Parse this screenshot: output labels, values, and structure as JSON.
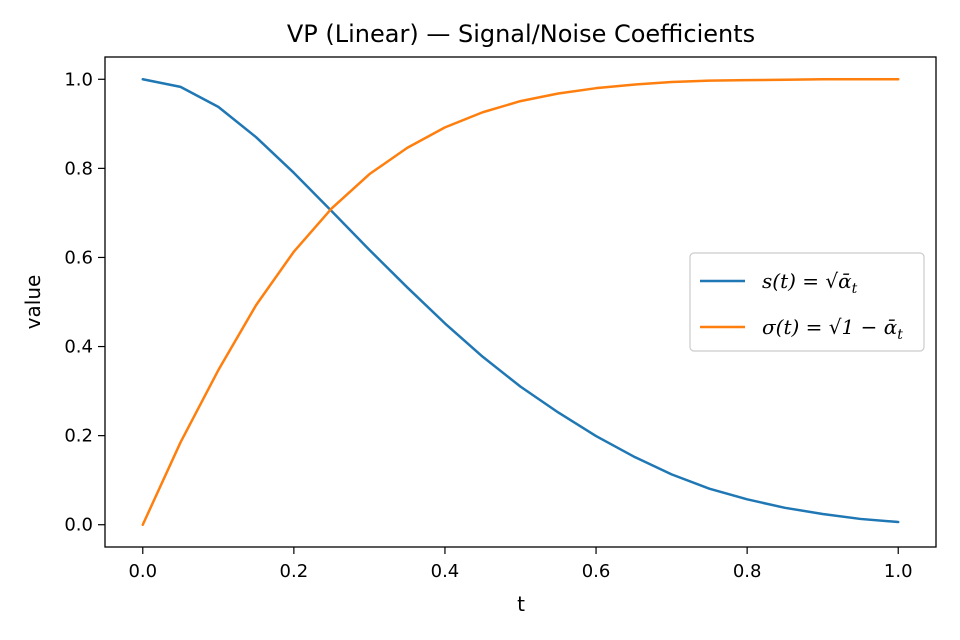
{
  "chart_data": {
    "type": "line",
    "title": "VP (Linear) — Signal/Noise Coefficients",
    "xlabel": "t",
    "ylabel": "value",
    "xlim": [
      -0.05,
      1.05
    ],
    "ylim": [
      -0.05,
      1.05
    ],
    "xticks": [
      0.0,
      0.2,
      0.4,
      0.6,
      0.8,
      1.0
    ],
    "xtick_labels": [
      "0.0",
      "0.2",
      "0.4",
      "0.6",
      "0.8",
      "1.0"
    ],
    "yticks": [
      0.0,
      0.2,
      0.4,
      0.6,
      0.8,
      1.0
    ],
    "ytick_labels": [
      "0.0",
      "0.2",
      "0.4",
      "0.6",
      "0.8",
      "1.0"
    ],
    "grid": false,
    "legend_position": "center-right",
    "x": [
      0.0,
      0.05,
      0.1,
      0.15,
      0.2,
      0.25,
      0.3,
      0.35,
      0.4,
      0.45,
      0.5,
      0.55,
      0.6,
      0.65,
      0.7,
      0.75,
      0.8,
      0.85,
      0.9,
      0.95,
      1.0
    ],
    "series": [
      {
        "name": "s(t) = √ᾱ_t",
        "color": "#1f77b4",
        "values": [
          1.0,
          0.983,
          0.938,
          0.87,
          0.79,
          0.704,
          0.617,
          0.533,
          0.452,
          0.377,
          0.31,
          0.252,
          0.199,
          0.153,
          0.113,
          0.081,
          0.057,
          0.038,
          0.024,
          0.013,
          0.006
        ]
      },
      {
        "name": "σ(t) = √(1 − ᾱ_t)",
        "color": "#ff7f0e",
        "values": [
          0.0,
          0.185,
          0.347,
          0.493,
          0.613,
          0.71,
          0.787,
          0.846,
          0.892,
          0.926,
          0.951,
          0.968,
          0.98,
          0.988,
          0.994,
          0.997,
          0.998,
          0.999,
          1.0,
          1.0,
          1.0
        ]
      }
    ]
  }
}
